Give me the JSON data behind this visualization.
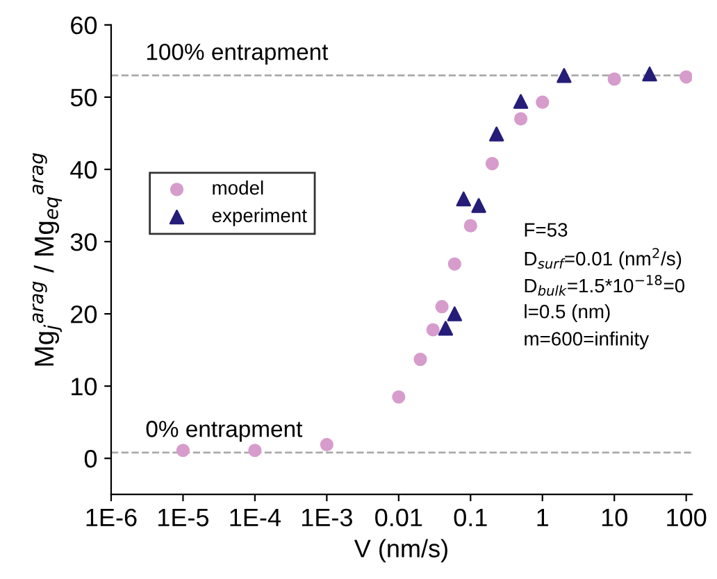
{
  "chart_data": {
    "type": "scatter",
    "xlabel": "V (nm/s)",
    "ylabel": "Mg$_{j}$$^{arag}$ / Mg$_{eq}$$^{arag}$",
    "log": "x",
    "xlim": [
      1e-06,
      120
    ],
    "ylim": [
      -5,
      60
    ],
    "xticks": [
      {
        "value": 1e-06,
        "label": "1E-6"
      },
      {
        "value": 1e-05,
        "label": "1E-5"
      },
      {
        "value": 0.0001,
        "label": "1E-4"
      },
      {
        "value": 0.001,
        "label": "1E-3"
      },
      {
        "value": 0.01,
        "label": "0.01"
      },
      {
        "value": 0.1,
        "label": "0.1"
      },
      {
        "value": 1,
        "label": "1"
      },
      {
        "value": 10,
        "label": "10"
      },
      {
        "value": 100,
        "label": "100"
      }
    ],
    "yticks": [
      0,
      10,
      20,
      30,
      40,
      50,
      60
    ],
    "grid": false,
    "legend": "left",
    "series": [
      {
        "name": "model",
        "color": "#d69ccc",
        "marker": "circle",
        "x": [
          1e-05,
          0.0001,
          0.001,
          0.01,
          0.02,
          0.03,
          0.04,
          0.06,
          0.1,
          0.2,
          0.5,
          1,
          10,
          100
        ],
        "values": [
          1.1,
          1.1,
          1.9,
          8.5,
          13.7,
          17.8,
          21,
          26.9,
          32.2,
          40.8,
          47,
          49.3,
          52.5,
          52.8
        ]
      },
      {
        "name": "experiment",
        "color": "#251d78",
        "marker": "triangle",
        "x": [
          0.045,
          0.06,
          0.08,
          0.13,
          0.23,
          0.5,
          2,
          31
        ],
        "values": [
          18,
          20,
          35.9,
          35,
          44.9,
          49.4,
          53,
          53.2
        ]
      }
    ],
    "ref_lines": [
      {
        "axis": "y",
        "value": 53,
        "label": "100% entrapment",
        "color": "#aaaaaa",
        "line_style": "dashed"
      },
      {
        "axis": "y",
        "value": 0.8,
        "label": "0% entrapment",
        "color": "#aaaaaa",
        "line_style": "dashed"
      }
    ],
    "annotations": [
      "F=53",
      "D$_{surf}$=0.01 (nm$^{2}$/s)",
      "D$_{bulk}$=1.5*10$^{−18}$=0",
      "l=0.5 (nm)",
      "m=600=infinity"
    ]
  }
}
